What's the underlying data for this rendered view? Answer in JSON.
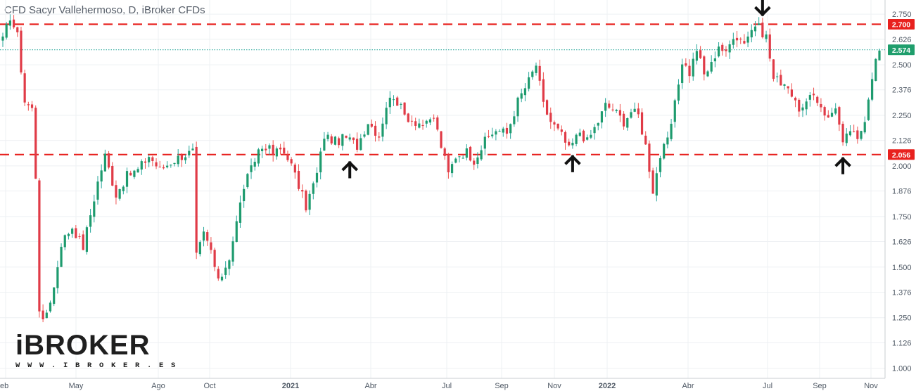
{
  "title": "CFD Sacyr Vallehermoso, D, iBroker CFDs",
  "logo": {
    "text": "iBROKER",
    "url": "W W W . I B R O K E R . E S"
  },
  "colors": {
    "up": "#26a69a",
    "down": "#ef5350",
    "upBody": "#1e9b6e",
    "downBody": "#e03b47",
    "level": "#e8211e",
    "price": "#26a69a",
    "grid": "#eef0f3",
    "axisText": "#505a66"
  },
  "chart_data": {
    "type": "candlestick",
    "title": "CFD Sacyr Vallehermoso, D, iBroker CFDs",
    "ylim": [
      0.95,
      2.82
    ],
    "y_ticks": [
      "1.000",
      "1.126",
      "1.250",
      "1.376",
      "1.500",
      "1.626",
      "1.750",
      "1.876",
      "2.000",
      "2.126",
      "2.250",
      "2.376",
      "2.500",
      "2.626",
      "2.750"
    ],
    "x_ticks": [
      "eb",
      "May",
      "Ago",
      "Oct",
      "2021",
      "Abr",
      "Jul",
      "Sep",
      "Nov",
      "2022",
      "Abr",
      "Jul",
      "Sep",
      "Nov"
    ],
    "price_line": {
      "value": 2.574,
      "label": "2.574"
    },
    "levels": [
      {
        "value": 2.7,
        "label": "2.700",
        "style": "dashed"
      },
      {
        "value": 2.056,
        "label": "2.056",
        "style": "dashed"
      }
    ],
    "markers": [
      {
        "index": 95,
        "direction": "up",
        "value": 2.05
      },
      {
        "index": 156,
        "direction": "up",
        "value": 2.08
      },
      {
        "index": 208,
        "direction": "down",
        "value": 2.7
      },
      {
        "index": 230,
        "direction": "up",
        "value": 2.07
      }
    ],
    "anchors": [
      [
        0,
        2.62
      ],
      [
        2,
        2.74
      ],
      [
        4,
        2.64
      ],
      [
        6,
        2.32
      ],
      [
        8,
        2.28
      ],
      [
        9,
        1.95
      ],
      [
        10,
        1.3
      ],
      [
        11,
        1.22
      ],
      [
        14,
        1.4
      ],
      [
        16,
        1.62
      ],
      [
        19,
        1.7
      ],
      [
        22,
        1.6
      ],
      [
        24,
        1.76
      ],
      [
        26,
        1.92
      ],
      [
        28,
        2.05
      ],
      [
        31,
        1.86
      ],
      [
        34,
        1.95
      ],
      [
        37,
        1.98
      ],
      [
        40,
        2.05
      ],
      [
        43,
        1.98
      ],
      [
        46,
        2.02
      ],
      [
        49,
        2.05
      ],
      [
        52,
        2.07
      ],
      [
        53,
        1.55
      ],
      [
        55,
        1.66
      ],
      [
        57,
        1.58
      ],
      [
        59,
        1.42
      ],
      [
        62,
        1.55
      ],
      [
        64,
        1.72
      ],
      [
        66,
        1.9
      ],
      [
        68,
        1.98
      ],
      [
        70,
        2.08
      ],
      [
        72,
        2.1
      ],
      [
        74,
        2.06
      ],
      [
        76,
        2.08
      ],
      [
        78,
        2.05
      ],
      [
        81,
        1.9
      ],
      [
        83,
        1.8
      ],
      [
        86,
        1.96
      ],
      [
        88,
        2.15
      ],
      [
        91,
        2.12
      ],
      [
        94,
        2.14
      ],
      [
        97,
        2.1
      ],
      [
        100,
        2.22
      ],
      [
        103,
        2.15
      ],
      [
        105,
        2.3
      ],
      [
        107,
        2.35
      ],
      [
        110,
        2.25
      ],
      [
        113,
        2.22
      ],
      [
        116,
        2.2
      ],
      [
        118,
        2.24
      ],
      [
        120,
        2.1
      ],
      [
        122,
        1.96
      ],
      [
        124,
        2.05
      ],
      [
        127,
        2.07
      ],
      [
        129,
        2.03
      ],
      [
        132,
        2.12
      ],
      [
        135,
        2.18
      ],
      [
        138,
        2.16
      ],
      [
        141,
        2.32
      ],
      [
        144,
        2.42
      ],
      [
        146,
        2.5
      ],
      [
        148,
        2.3
      ],
      [
        150,
        2.22
      ],
      [
        153,
        2.15
      ],
      [
        155,
        2.08
      ],
      [
        158,
        2.17
      ],
      [
        160,
        2.12
      ],
      [
        163,
        2.22
      ],
      [
        165,
        2.3
      ],
      [
        167,
        2.28
      ],
      [
        170,
        2.22
      ],
      [
        172,
        2.27
      ],
      [
        174,
        2.25
      ],
      [
        176,
        2.1
      ],
      [
        178,
        1.88
      ],
      [
        180,
        2.05
      ],
      [
        182,
        2.12
      ],
      [
        184,
        2.3
      ],
      [
        186,
        2.52
      ],
      [
        188,
        2.46
      ],
      [
        190,
        2.58
      ],
      [
        192,
        2.45
      ],
      [
        194,
        2.5
      ],
      [
        196,
        2.6
      ],
      [
        198,
        2.55
      ],
      [
        200,
        2.65
      ],
      [
        203,
        2.62
      ],
      [
        206,
        2.7
      ],
      [
        209,
        2.64
      ],
      [
        211,
        2.43
      ],
      [
        213,
        2.42
      ],
      [
        215,
        2.4
      ],
      [
        217,
        2.3
      ],
      [
        219,
        2.28
      ],
      [
        222,
        2.35
      ],
      [
        224,
        2.3
      ],
      [
        226,
        2.23
      ],
      [
        228,
        2.3
      ],
      [
        230,
        2.1
      ],
      [
        232,
        2.18
      ],
      [
        234,
        2.12
      ],
      [
        236,
        2.24
      ],
      [
        238,
        2.45
      ],
      [
        239,
        2.52
      ],
      [
        240,
        2.57
      ]
    ]
  }
}
